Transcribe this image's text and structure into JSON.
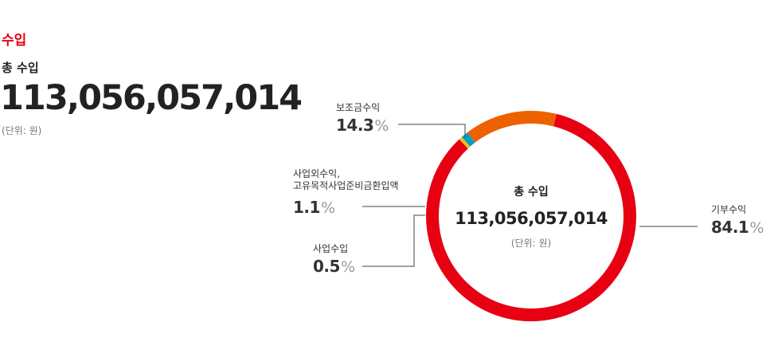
{
  "section": {
    "title": "수입"
  },
  "summary": {
    "label": "총 수입",
    "value": "113,056,057,014",
    "unit": "(단위: 원)"
  },
  "center": {
    "label": "총 수입",
    "value": "113,056,057,014",
    "unit": "(단위: 원)"
  },
  "callouts": [
    {
      "label": "보조금수익",
      "value": "14.3",
      "pct": "%"
    },
    {
      "label": "사업외수익,\n고유목적사업준비금환입액",
      "value": "1.1",
      "pct": "%"
    },
    {
      "label": "사업수입",
      "value": "0.5",
      "pct": "%"
    },
    {
      "label": "기부수익",
      "value": "84.1",
      "pct": "%"
    }
  ],
  "chart_data": {
    "type": "pie",
    "donut": true,
    "unit": "%",
    "slices": [
      {
        "name": "기부수익",
        "value": 84.1,
        "color": "#e60012"
      },
      {
        "name": "사업수입",
        "value": 0.5,
        "color": "#f5c000"
      },
      {
        "name": "사업외수익, 고유목적사업준비금환입액",
        "value": 1.1,
        "color": "#00a0c6"
      },
      {
        "name": "보조금수익",
        "value": 14.3,
        "color": "#ec6100"
      }
    ]
  }
}
